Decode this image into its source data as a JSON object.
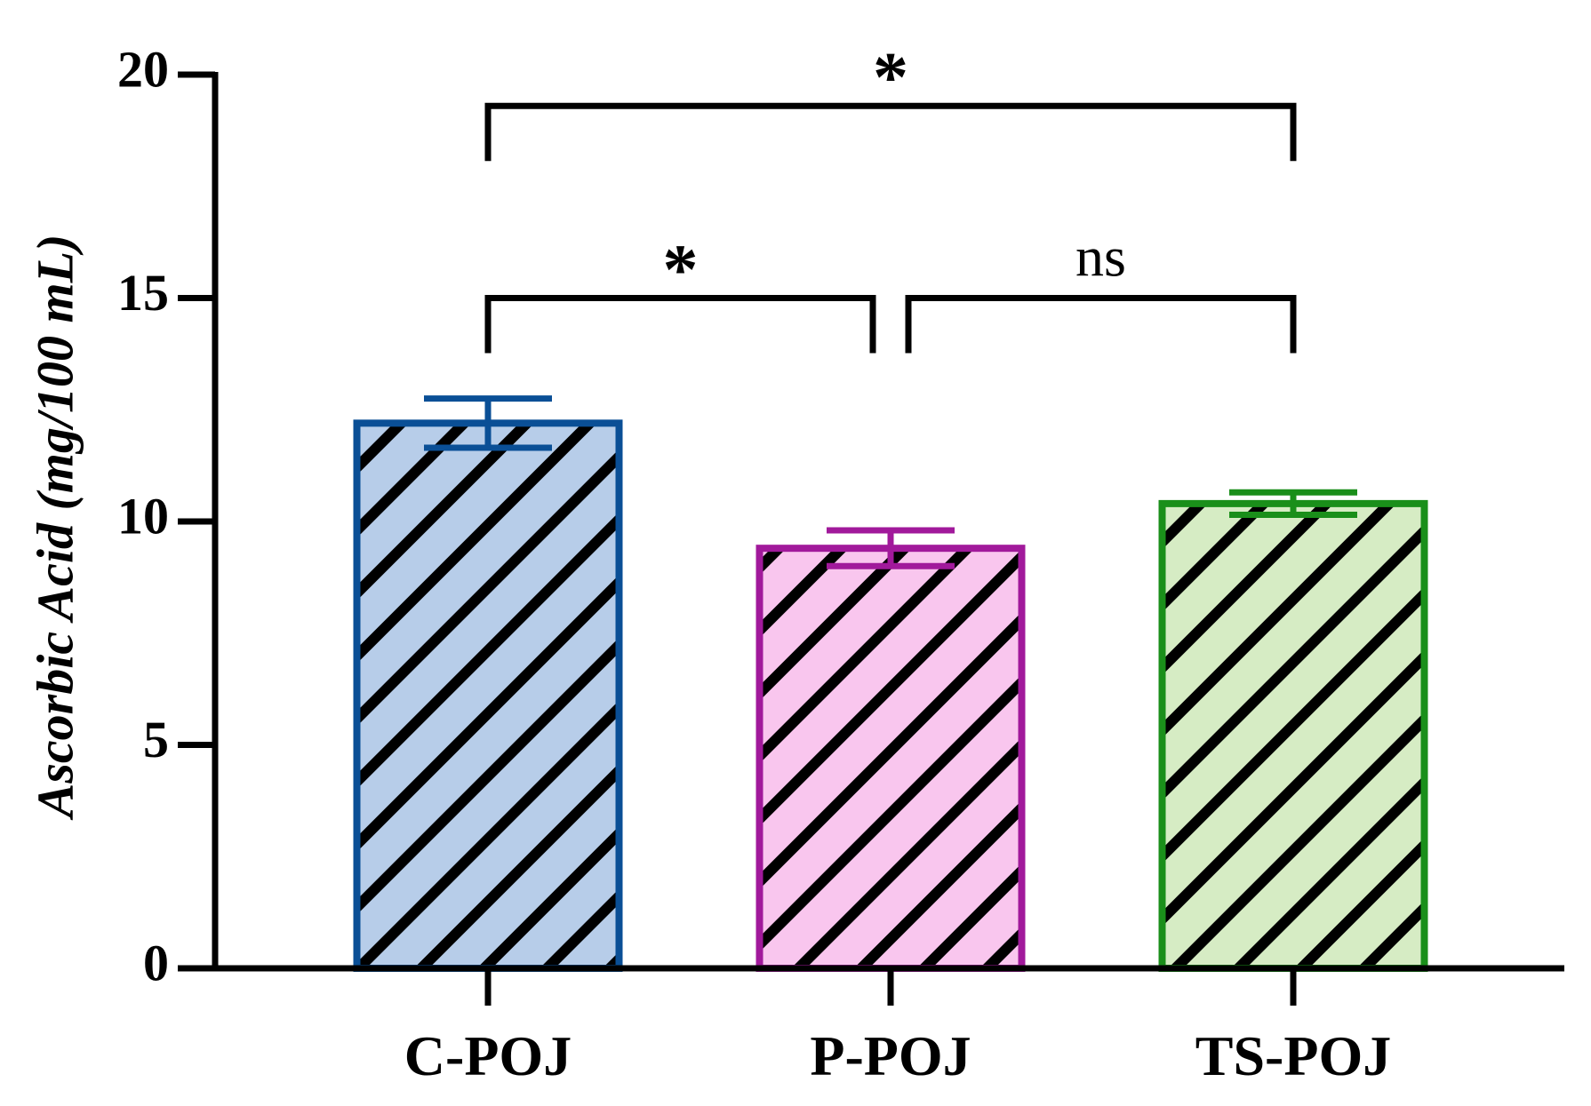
{
  "chart_data": {
    "type": "bar",
    "categories": [
      "C-POJ",
      "P-POJ",
      "TS-POJ"
    ],
    "values": [
      12.2,
      9.4,
      10.4
    ],
    "errors": [
      0.55,
      0.4,
      0.25
    ],
    "ylabel": "Ascorbic Acid (mg/100 mL)",
    "xlabel": "",
    "ylim": [
      0,
      20
    ],
    "yticks": [
      0,
      5,
      10,
      15,
      20
    ],
    "grid": false,
    "legend": "none",
    "bar_edge_colors": [
      "#0a4f96",
      "#a1199b",
      "#1a8f1a"
    ],
    "bar_fill_colors": [
      "#b7cde9",
      "#f9c6ee",
      "#d6ecc4"
    ],
    "hatch_color": "#000000",
    "significance": [
      {
        "from": 0,
        "to": 1,
        "label": "*",
        "y": 15.0
      },
      {
        "from": 1,
        "to": 2,
        "label": "ns",
        "y": 15.0
      },
      {
        "from": 0,
        "to": 2,
        "label": "*",
        "y": 19.3
      }
    ]
  }
}
